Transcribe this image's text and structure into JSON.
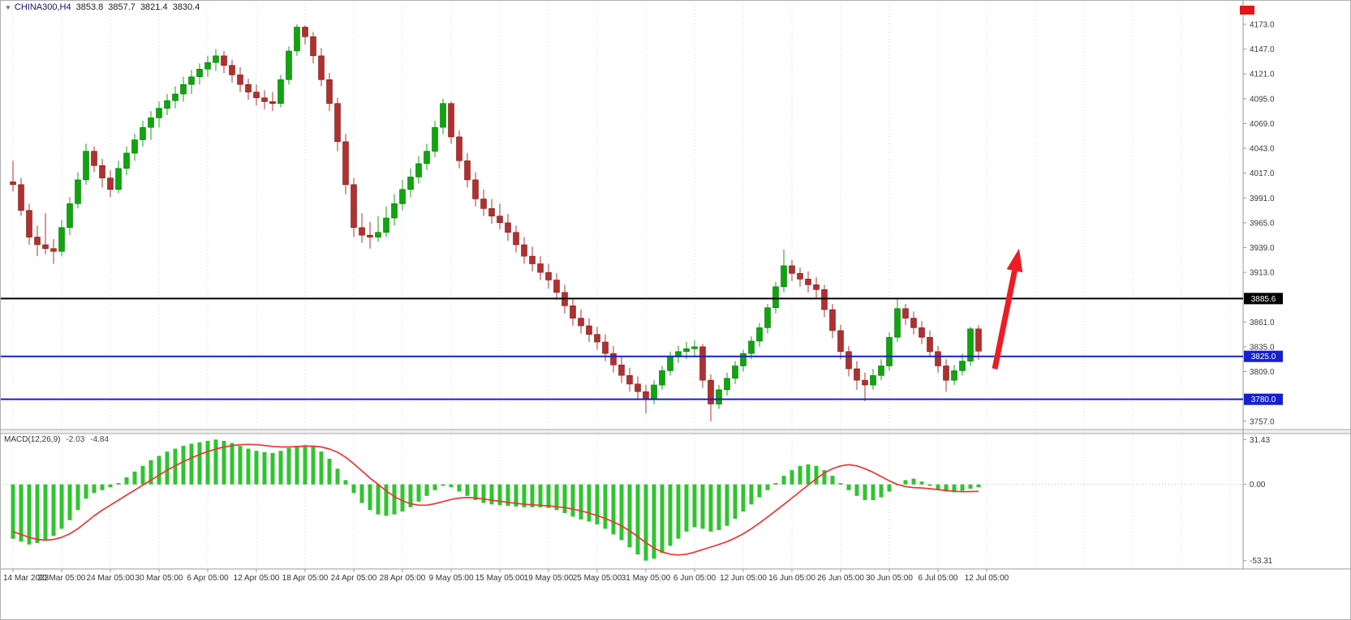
{
  "symbol_bar": {
    "dropdown_icon": "▼",
    "symbol": "CHINA300,H4",
    "open": "3853.8",
    "high": "3857.7",
    "low": "3821.4",
    "close": "3830.4"
  },
  "macd_panel": {
    "label": "MACD(12,26,9)",
    "main_value": "-2.03",
    "signal_value": "-4.84"
  },
  "annotations": {
    "corner_marker": {
      "color": "#e41616"
    }
  },
  "chart_data": [
    {
      "type": "candlestick",
      "symbol": "CHINA300",
      "timeframe": "H4",
      "ylim": [
        3750,
        4190
      ],
      "ytick_labels": [
        "4173.0",
        "4147.0",
        "4121.0",
        "4095.0",
        "4069.0",
        "4043.0",
        "4017.0",
        "3991.0",
        "3965.0",
        "3939.0",
        "3913.0",
        "3861.0",
        "3835.0",
        "3809.0",
        "3757.0"
      ],
      "x_tick_labels": [
        "14 Mar 2023",
        "20 Mar 05:00",
        "24 Mar 05:00",
        "30 Mar 05:00",
        "6 Apr 05:00",
        "12 Apr 05:00",
        "18 Apr 05:00",
        "24 Apr 05:00",
        "28 Apr 05:00",
        "9 May 05:00",
        "15 May 05:00",
        "19 May 05:00",
        "25 May 05:00",
        "31 May 05:00",
        "6 Jun 05:00",
        "12 Jun 05:00",
        "16 Jun 05:00",
        "26 Jun 05:00",
        "30 Jun 05:00",
        "6 Jul 05:00",
        "12 Jul 05:00"
      ],
      "x_tick_step": 6,
      "up_color": "#0fa50f",
      "down_color": "#b03030",
      "grid_on": true,
      "levels": [
        {
          "price": 3885.6,
          "label": "3885.6",
          "color": "#000000"
        },
        {
          "price": 3825.0,
          "label": "3825.0",
          "color": "#1621c9"
        },
        {
          "price": 3780.0,
          "label": "3780.0",
          "color": "#1621c9"
        }
      ],
      "arrow": {
        "from_index": 121,
        "from_price": 3812,
        "to_index": 124,
        "to_price": 3938,
        "color": "#ed1c24"
      },
      "candles": [
        [
          4008,
          4030,
          3998,
          4005
        ],
        [
          4005,
          4012,
          3972,
          3978
        ],
        [
          3978,
          3985,
          3942,
          3950
        ],
        [
          3950,
          3962,
          3930,
          3942
        ],
        [
          3942,
          3975,
          3932,
          3938
        ],
        [
          3938,
          3948,
          3922,
          3935
        ],
        [
          3935,
          3968,
          3930,
          3960
        ],
        [
          3960,
          3992,
          3952,
          3985
        ],
        [
          3985,
          4018,
          3980,
          4010
        ],
        [
          4010,
          4048,
          4005,
          4040
        ],
        [
          4040,
          4045,
          4018,
          4025
        ],
        [
          4025,
          4032,
          4002,
          4012
        ],
        [
          4012,
          4020,
          3992,
          4000
        ],
        [
          4000,
          4030,
          3996,
          4022
        ],
        [
          4022,
          4045,
          4015,
          4038
        ],
        [
          4038,
          4058,
          4030,
          4052
        ],
        [
          4052,
          4072,
          4045,
          4065
        ],
        [
          4065,
          4082,
          4052,
          4075
        ],
        [
          4075,
          4092,
          4065,
          4085
        ],
        [
          4085,
          4100,
          4078,
          4093
        ],
        [
          4093,
          4108,
          4085,
          4100
        ],
        [
          4100,
          4118,
          4092,
          4110
        ],
        [
          4110,
          4125,
          4100,
          4118
        ],
        [
          4118,
          4132,
          4110,
          4126
        ],
        [
          4126,
          4140,
          4118,
          4133
        ],
        [
          4133,
          4147,
          4124,
          4140
        ],
        [
          4140,
          4145,
          4122,
          4130
        ],
        [
          4130,
          4136,
          4112,
          4120
        ],
        [
          4120,
          4128,
          4102,
          4110
        ],
        [
          4110,
          4116,
          4094,
          4102
        ],
        [
          4102,
          4110,
          4088,
          4096
        ],
        [
          4096,
          4104,
          4084,
          4092
        ],
        [
          4092,
          4102,
          4082,
          4090
        ],
        [
          4090,
          4120,
          4086,
          4115
        ],
        [
          4115,
          4150,
          4110,
          4145
        ],
        [
          4145,
          4173,
          4140,
          4170
        ],
        [
          4170,
          4172,
          4152,
          4160
        ],
        [
          4160,
          4165,
          4132,
          4140
        ],
        [
          4140,
          4148,
          4108,
          4115
        ],
        [
          4115,
          4122,
          4082,
          4090
        ],
        [
          4090,
          4096,
          4040,
          4050
        ],
        [
          4050,
          4058,
          3995,
          4005
        ],
        [
          4005,
          4012,
          3950,
          3960
        ],
        [
          3960,
          3975,
          3944,
          3952
        ],
        [
          3952,
          3966,
          3938,
          3950
        ],
        [
          3950,
          3972,
          3945,
          3955
        ],
        [
          3955,
          3982,
          3950,
          3970
        ],
        [
          3970,
          3995,
          3962,
          3985
        ],
        [
          3985,
          4010,
          3978,
          4000
        ],
        [
          4000,
          4022,
          3992,
          4013
        ],
        [
          4013,
          4035,
          4006,
          4027
        ],
        [
          4027,
          4048,
          4020,
          4040
        ],
        [
          4040,
          4072,
          4034,
          4065
        ],
        [
          4065,
          4095,
          4058,
          4090
        ],
        [
          4090,
          4092,
          4048,
          4055
        ],
        [
          4055,
          4062,
          4022,
          4030
        ],
        [
          4030,
          4038,
          4002,
          4010
        ],
        [
          4010,
          4018,
          3982,
          3990
        ],
        [
          3990,
          4000,
          3972,
          3980
        ],
        [
          3980,
          3990,
          3964,
          3972
        ],
        [
          3972,
          3985,
          3958,
          3965
        ],
        [
          3965,
          3974,
          3946,
          3955
        ],
        [
          3955,
          3962,
          3934,
          3942
        ],
        [
          3942,
          3950,
          3922,
          3930
        ],
        [
          3930,
          3940,
          3914,
          3922
        ],
        [
          3922,
          3930,
          3905,
          3913
        ],
        [
          3913,
          3922,
          3896,
          3905
        ],
        [
          3905,
          3912,
          3884,
          3892
        ],
        [
          3892,
          3900,
          3870,
          3878
        ],
        [
          3878,
          3886,
          3857,
          3865
        ],
        [
          3865,
          3874,
          3849,
          3857
        ],
        [
          3857,
          3865,
          3840,
          3848
        ],
        [
          3848,
          3856,
          3832,
          3840
        ],
        [
          3840,
          3848,
          3820,
          3828
        ],
        [
          3828,
          3836,
          3808,
          3816
        ],
        [
          3816,
          3824,
          3797,
          3805
        ],
        [
          3805,
          3813,
          3788,
          3796
        ],
        [
          3796,
          3804,
          3780,
          3788
        ],
        [
          3788,
          3795,
          3765,
          3780
        ],
        [
          3780,
          3800,
          3775,
          3795
        ],
        [
          3795,
          3815,
          3790,
          3810
        ],
        [
          3810,
          3830,
          3805,
          3825
        ],
        [
          3825,
          3836,
          3818,
          3830
        ],
        [
          3830,
          3840,
          3822,
          3833
        ],
        [
          3833,
          3842,
          3824,
          3835
        ],
        [
          3835,
          3838,
          3792,
          3800
        ],
        [
          3800,
          3806,
          3757,
          3775
        ],
        [
          3775,
          3795,
          3770,
          3790
        ],
        [
          3790,
          3808,
          3784,
          3802
        ],
        [
          3802,
          3820,
          3796,
          3815
        ],
        [
          3815,
          3832,
          3809,
          3828
        ],
        [
          3828,
          3846,
          3822,
          3841
        ],
        [
          3841,
          3860,
          3835,
          3855
        ],
        [
          3855,
          3880,
          3849,
          3876
        ],
        [
          3876,
          3903,
          3870,
          3898
        ],
        [
          3898,
          3937,
          3892,
          3920
        ],
        [
          3920,
          3926,
          3904,
          3912
        ],
        [
          3912,
          3918,
          3898,
          3906
        ],
        [
          3906,
          3914,
          3892,
          3900
        ],
        [
          3900,
          3908,
          3886,
          3895
        ],
        [
          3895,
          3900,
          3866,
          3874
        ],
        [
          3874,
          3880,
          3844,
          3852
        ],
        [
          3852,
          3858,
          3822,
          3830
        ],
        [
          3830,
          3836,
          3804,
          3812
        ],
        [
          3812,
          3820,
          3790,
          3800
        ],
        [
          3800,
          3808,
          3778,
          3795
        ],
        [
          3795,
          3812,
          3790,
          3805
        ],
        [
          3805,
          3822,
          3800,
          3815
        ],
        [
          3815,
          3850,
          3810,
          3845
        ],
        [
          3845,
          3886,
          3840,
          3875
        ],
        [
          3875,
          3880,
          3858,
          3865
        ],
        [
          3865,
          3872,
          3848,
          3855
        ],
        [
          3855,
          3862,
          3838,
          3845
        ],
        [
          3845,
          3852,
          3824,
          3830
        ],
        [
          3830,
          3836,
          3808,
          3815
        ],
        [
          3815,
          3822,
          3788,
          3800
        ],
        [
          3800,
          3816,
          3795,
          3810
        ],
        [
          3810,
          3828,
          3805,
          3820
        ],
        [
          3820,
          3856,
          3815,
          3853.8
        ],
        [
          3853.8,
          3857.7,
          3821.4,
          3830.4
        ]
      ]
    },
    {
      "type": "bar",
      "name": "MACD(12,26,9)",
      "ylim": [
        -58,
        35
      ],
      "ytick_labels": [
        "31.43",
        "0.00",
        "-53.31"
      ],
      "colors": {
        "histogram": "#2fc42f",
        "signal": "#f23333"
      },
      "values": [
        -38,
        -40,
        -42,
        -41,
        -39,
        -36,
        -31,
        -25,
        -18,
        -10,
        -6,
        -4,
        -2,
        1,
        5,
        9,
        13,
        17,
        20,
        23,
        25,
        27,
        28.5,
        29.5,
        30.5,
        31.4,
        30.5,
        29,
        27,
        25,
        23.5,
        22.5,
        22,
        23.5,
        25.5,
        27,
        27.5,
        26.5,
        23,
        18,
        11,
        3,
        -6,
        -13,
        -18,
        -21,
        -22,
        -21,
        -19,
        -16,
        -12,
        -8,
        -4,
        -1,
        -2,
        -5,
        -8,
        -11,
        -13,
        -14,
        -14.5,
        -15,
        -15.5,
        -16,
        -16,
        -16,
        -16.5,
        -18,
        -20,
        -22.5,
        -24.5,
        -26,
        -28,
        -31,
        -35,
        -39,
        -44,
        -49,
        -53.3,
        -52,
        -48,
        -43,
        -38,
        -33,
        -30,
        -31,
        -33,
        -32,
        -29,
        -24,
        -19,
        -14,
        -9,
        -4,
        1,
        6,
        10,
        13,
        14,
        13,
        10,
        6,
        1,
        -4,
        -8,
        -11,
        -11,
        -9,
        -5,
        0,
        3,
        4,
        2,
        -1,
        -3.5,
        -5,
        -5.5,
        -4.5,
        -3,
        -2.03
      ],
      "series": [
        {
          "name": "signal",
          "values": [
            -33,
            -35,
            -37,
            -38.5,
            -39,
            -38.5,
            -37,
            -34.5,
            -31,
            -26.5,
            -22,
            -18,
            -14.5,
            -11,
            -7.5,
            -4,
            -0.5,
            3,
            6.5,
            10,
            13,
            16,
            18.5,
            21,
            23,
            24.8,
            26.2,
            27.2,
            27.8,
            28,
            27.8,
            27.3,
            26.6,
            26.2,
            26.2,
            26.5,
            26.8,
            26.8,
            26.2,
            24.8,
            22.5,
            19,
            14.5,
            9.5,
            4.5,
            0,
            -4.5,
            -8.5,
            -11.5,
            -13.5,
            -14.5,
            -14.5,
            -13.5,
            -12,
            -10.5,
            -9.5,
            -9.2,
            -9.5,
            -10.2,
            -11,
            -11.8,
            -12.5,
            -13.2,
            -13.8,
            -14.2,
            -14.6,
            -15,
            -15.5,
            -16.2,
            -17.2,
            -18.5,
            -20,
            -21.8,
            -23.8,
            -26.2,
            -29,
            -32.5,
            -36.5,
            -40.8,
            -44.5,
            -47.2,
            -48.8,
            -49.4,
            -48.8,
            -47.4,
            -45.6,
            -43.8,
            -42,
            -40,
            -37.5,
            -34.5,
            -31,
            -27,
            -22.8,
            -18.4,
            -14,
            -9.5,
            -5,
            -0.5,
            4,
            8,
            11,
            13,
            13.8,
            13,
            11,
            8.5,
            5.5,
            2.5,
            0,
            -1.5,
            -2.2,
            -2.5,
            -3,
            -3.6,
            -4.2,
            -4.8,
            -5.1,
            -5,
            -4.84
          ]
        }
      ]
    }
  ]
}
